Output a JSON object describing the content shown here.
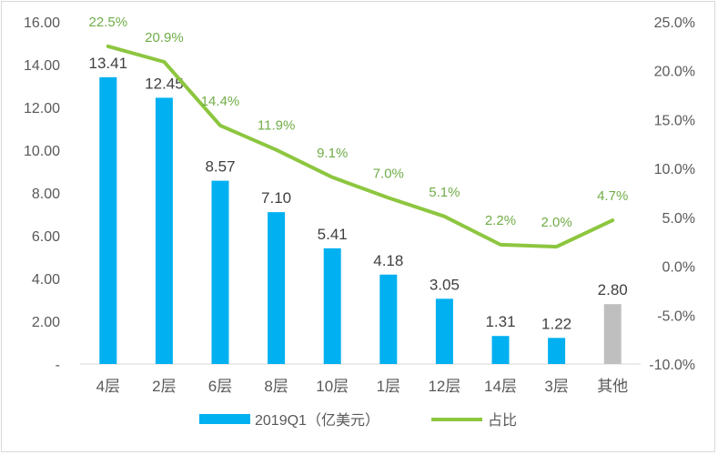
{
  "chart_data": {
    "type": "bar",
    "categories": [
      "4层",
      "2层",
      "6层",
      "8层",
      "10层",
      "1层",
      "12层",
      "14层",
      "3层",
      "其他"
    ],
    "series": [
      {
        "name": "2019Q1（亿美元）",
        "type": "bar",
        "axis": "left",
        "values": [
          13.41,
          12.45,
          8.57,
          7.1,
          5.41,
          4.18,
          3.05,
          1.31,
          1.22,
          2.8
        ],
        "labels": [
          "13.41",
          "12.45",
          "8.57",
          "7.10",
          "5.41",
          "4.18",
          "3.05",
          "1.31",
          "1.22",
          "2.80"
        ],
        "color": "#00b0f0",
        "highlight_color": "#bfbfbf",
        "highlight_index": 9
      },
      {
        "name": "占比",
        "type": "line",
        "axis": "right",
        "values": [
          22.5,
          20.9,
          14.4,
          11.9,
          9.1,
          7.0,
          5.1,
          2.2,
          2.0,
          4.7
        ],
        "labels": [
          "22.5%",
          "20.9%",
          "14.4%",
          "11.9%",
          "9.1%",
          "7.0%",
          "5.1%",
          "2.2%",
          "2.0%",
          "4.7%"
        ],
        "color": "#8dc63f",
        "label_color": "#70ad47"
      }
    ],
    "y_left": {
      "ylim": [
        0,
        16
      ],
      "ticks": [
        "-",
        "2.00",
        "4.00",
        "6.00",
        "8.00",
        "10.00",
        "12.00",
        "14.00",
        "16.00"
      ]
    },
    "y_right": {
      "ylim": [
        -10,
        25
      ],
      "ticks": [
        "-10.0%",
        "-5.0%",
        "0.0%",
        "5.0%",
        "10.0%",
        "15.0%",
        "20.0%",
        "25.0%"
      ]
    },
    "grid": false,
    "legend": "bottom"
  }
}
